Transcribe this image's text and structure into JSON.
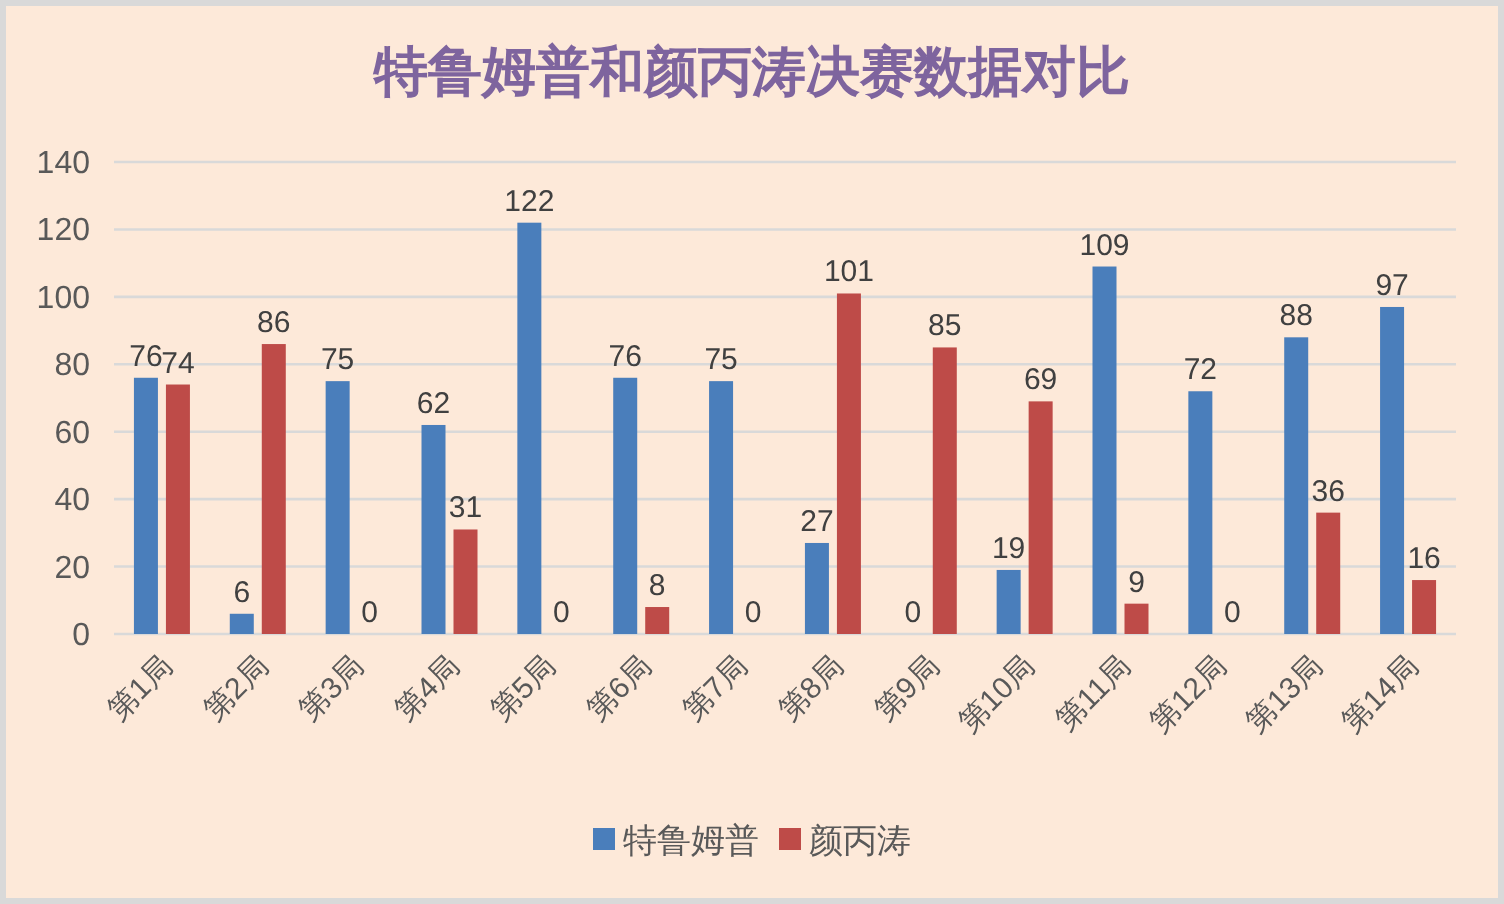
{
  "chart_data": {
    "type": "bar",
    "title": "特鲁姆普和颜丙涛决赛数据对比",
    "categories": [
      "第1局",
      "第2局",
      "第3局",
      "第4局",
      "第5局",
      "第6局",
      "第7局",
      "第8局",
      "第9局",
      "第10局",
      "第11局",
      "第12局",
      "第13局",
      "第14局"
    ],
    "series": [
      {
        "name": "特鲁姆普",
        "color": "#4a7ebb",
        "values": [
          76,
          6,
          75,
          62,
          122,
          76,
          75,
          27,
          0,
          19,
          109,
          72,
          88,
          97
        ]
      },
      {
        "name": "颜丙涛",
        "color": "#be4b48",
        "values": [
          74,
          86,
          0,
          31,
          0,
          8,
          0,
          101,
          85,
          69,
          9,
          0,
          36,
          16
        ]
      }
    ],
    "ylim": [
      0,
      140
    ],
    "yticks": [
      0,
      20,
      40,
      60,
      80,
      100,
      120,
      140
    ],
    "grid": "y",
    "legend": "bottom",
    "data_labels": true
  }
}
